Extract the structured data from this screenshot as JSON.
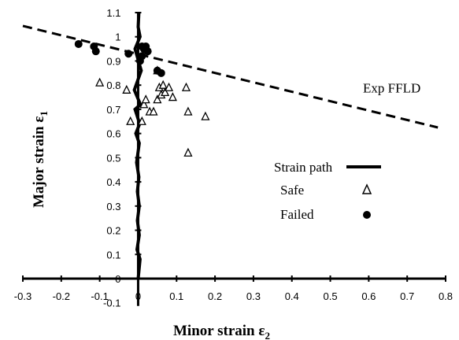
{
  "chart_data": {
    "type": "scatter",
    "xlabel": "Minor strain ε",
    "xlabel_sub": "2",
    "ylabel": "Major strain ε",
    "ylabel_sub": "1",
    "xlim": [
      -0.3,
      0.8
    ],
    "ylim": [
      0,
      1.1
    ],
    "x_ticks": [
      "-0.3",
      "-0.2",
      "-0.1",
      "0",
      "0.1",
      "0.2",
      "0.3",
      "0.4",
      "0.5",
      "0.6",
      "0.7",
      "0.8"
    ],
    "x_tick_values": [
      -0.3,
      -0.2,
      -0.1,
      0,
      0.1,
      0.2,
      0.3,
      0.4,
      0.5,
      0.6,
      0.7,
      0.8
    ],
    "y_ticks": [
      "0",
      "0.1",
      "0.2",
      "0.3",
      "0.4",
      "0.5",
      "0.6",
      "0.7",
      "0.8",
      "0.9",
      "1",
      "1.1"
    ],
    "y_tick_values": [
      0,
      0.1,
      0.2,
      0.3,
      0.4,
      0.5,
      0.6,
      0.7,
      0.8,
      0.9,
      1.0,
      1.1
    ],
    "y_extra_tick": {
      "label": "-0.1",
      "value": -0.1
    },
    "legend": {
      "placement": "center-right",
      "entries": [
        {
          "label": "Strain path",
          "marker": "thick-line"
        },
        {
          "label": "Safe",
          "marker": "open-triangle"
        },
        {
          "label": "Failed",
          "marker": "filled-circle"
        }
      ]
    },
    "series": [
      {
        "name": "Exp FFLD",
        "kind": "dashed-line",
        "points": [
          [
            -0.3,
            1.045
          ],
          [
            0.78,
            0.625
          ]
        ]
      },
      {
        "name": "Strain path",
        "kind": "thick-line",
        "points": [
          [
            0.0,
            0.0
          ],
          [
            0.005,
            0.08
          ],
          [
            -0.003,
            0.12
          ],
          [
            0.003,
            0.18
          ],
          [
            -0.002,
            0.24
          ],
          [
            0.003,
            0.3
          ],
          [
            -0.002,
            0.36
          ],
          [
            0.002,
            0.42
          ],
          [
            -0.004,
            0.48
          ],
          [
            0.003,
            0.56
          ],
          [
            -0.006,
            0.6
          ],
          [
            0.004,
            0.64
          ],
          [
            -0.008,
            0.7
          ],
          [
            0.006,
            0.72
          ],
          [
            -0.01,
            0.78
          ],
          [
            0.008,
            0.86
          ],
          [
            -0.008,
            0.95
          ],
          [
            0.005,
            1.0
          ],
          [
            0.0,
            1.04
          ],
          [
            0.002,
            1.1
          ]
        ]
      },
      {
        "name": "Safe",
        "kind": "open-triangle",
        "points": [
          [
            -0.1,
            0.81
          ],
          [
            -0.03,
            0.78
          ],
          [
            -0.02,
            0.65
          ],
          [
            0.01,
            0.65
          ],
          [
            0.015,
            0.72
          ],
          [
            0.02,
            0.74
          ],
          [
            0.03,
            0.69
          ],
          [
            0.04,
            0.69
          ],
          [
            0.05,
            0.86
          ],
          [
            0.05,
            0.74
          ],
          [
            0.055,
            0.79
          ],
          [
            0.06,
            0.76
          ],
          [
            0.065,
            0.8
          ],
          [
            0.07,
            0.77
          ],
          [
            0.08,
            0.79
          ],
          [
            0.09,
            0.75
          ],
          [
            0.125,
            0.79
          ],
          [
            0.13,
            0.69
          ],
          [
            0.13,
            0.52
          ],
          [
            0.175,
            0.67
          ]
        ]
      },
      {
        "name": "Failed",
        "kind": "filled-circle",
        "points": [
          [
            -0.155,
            0.97
          ],
          [
            -0.115,
            0.96
          ],
          [
            -0.11,
            0.94
          ],
          [
            -0.025,
            0.93
          ],
          [
            0.005,
            0.9
          ],
          [
            0.01,
            0.96
          ],
          [
            0.01,
            0.92
          ],
          [
            0.015,
            0.95
          ],
          [
            0.02,
            0.96
          ],
          [
            0.025,
            0.94
          ],
          [
            0.05,
            0.86
          ],
          [
            0.06,
            0.85
          ]
        ]
      }
    ],
    "annotations": [
      {
        "text": "Exp FFLD",
        "x": 0.66,
        "y": 0.77
      }
    ]
  }
}
